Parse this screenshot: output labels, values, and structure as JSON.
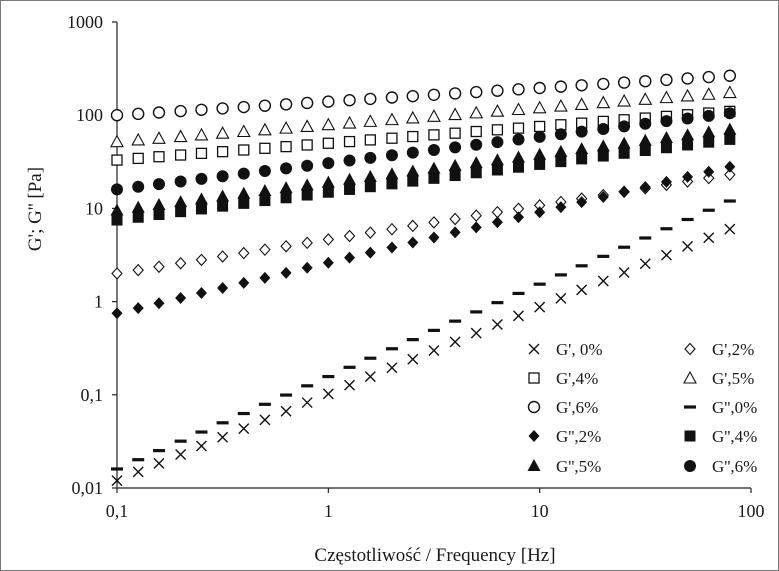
{
  "chart_data": {
    "type": "scatter",
    "title": "",
    "xlabel": "Częstotliwość / Frequency [Hz]",
    "ylabel": "G'; G'' [Pa]",
    "x_scale": "log",
    "y_scale": "log",
    "xlim": [
      0.1,
      100
    ],
    "ylim": [
      0.01,
      1000
    ],
    "grid": false,
    "legend_position": "bottom-right",
    "x_ticks": [
      {
        "value": 0.1,
        "label": "0,1"
      },
      {
        "value": 1,
        "label": "1"
      },
      {
        "value": 10,
        "label": "10"
      },
      {
        "value": 100,
        "label": "100"
      }
    ],
    "y_ticks": [
      {
        "value": 0.01,
        "label": "0,01"
      },
      {
        "value": 0.1,
        "label": "0,1"
      },
      {
        "value": 1,
        "label": "1"
      },
      {
        "value": 10,
        "label": "10"
      },
      {
        "value": 100,
        "label": "100"
      },
      {
        "value": 1000,
        "label": "1000"
      }
    ],
    "frequency": [
      0.1,
      0.126,
      0.158,
      0.2,
      0.251,
      0.316,
      0.398,
      0.501,
      0.631,
      0.794,
      1,
      1.26,
      1.58,
      2,
      2.51,
      3.16,
      3.98,
      5.01,
      6.31,
      7.94,
      10,
      12.6,
      15.8,
      20,
      25.1,
      31.6,
      39.8,
      50.1,
      63.1,
      79.4
    ],
    "series": [
      {
        "name": "G', 0%",
        "marker": "x",
        "start": 0.012,
        "end": 6
      },
      {
        "name": "G',2%",
        "marker": "diamond-open",
        "start": 2,
        "end": 23
      },
      {
        "name": "G',4%",
        "marker": "square-open",
        "start": 33,
        "end": 110
      },
      {
        "name": "G',5%",
        "marker": "triangle-open",
        "start": 52,
        "end": 175
      },
      {
        "name": "G',6%",
        "marker": "circle-open",
        "start": 100,
        "end": 265
      },
      {
        "name": "G'',0%",
        "marker": "dash",
        "start": 0.016,
        "end": 12
      },
      {
        "name": "G'',2%",
        "marker": "diamond-filled",
        "start": 0.75,
        "end": 28
      },
      {
        "name": "G'',4%",
        "marker": "square-filled",
        "start": 7.5,
        "end": 55
      },
      {
        "name": "G'',5%",
        "marker": "triangle-filled",
        "start": 9.5,
        "end": 70
      },
      {
        "name": "G'',6%",
        "marker": "circle-filled",
        "start": 16,
        "end": 105
      }
    ]
  }
}
